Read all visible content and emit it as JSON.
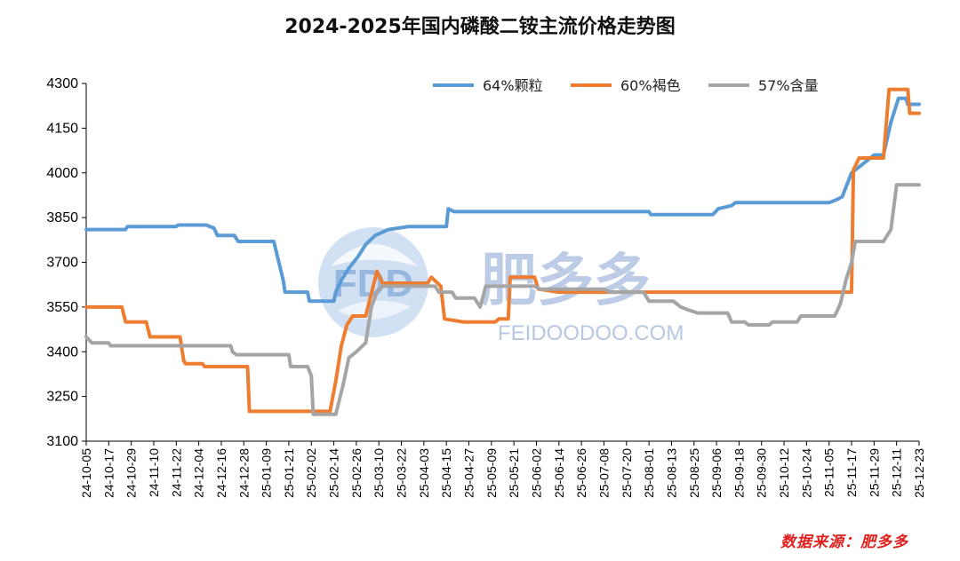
{
  "chart_data": {
    "type": "line",
    "title": "2024-2025年国内磷酸二铵主流价格走势图",
    "xlabel": "",
    "ylabel": "",
    "ylim": [
      3100,
      4300
    ],
    "yticks": [
      3100,
      3250,
      3400,
      3550,
      3700,
      3850,
      4000,
      4150,
      4300
    ],
    "xticks": [
      "24-10-05",
      "24-10-17",
      "24-10-29",
      "24-11-10",
      "24-11-22",
      "24-12-04",
      "24-12-16",
      "24-12-28",
      "25-01-09",
      "25-01-21",
      "25-02-02",
      "25-02-14",
      "25-02-26",
      "25-03-10",
      "25-03-22",
      "25-04-03",
      "25-04-15",
      "25-04-27",
      "25-05-09",
      "25-05-21",
      "25-06-02",
      "25-06-14",
      "25-06-26",
      "25-07-08",
      "25-07-20",
      "25-08-01",
      "25-08-13",
      "25-08-25",
      "25-09-06",
      "25-09-18",
      "25-09-30",
      "25-10-12",
      "25-10-24",
      "25-11-05",
      "25-11-17",
      "25-11-29",
      "25-12-11",
      "25-12-23"
    ],
    "grid": false,
    "legend_position": "top-right",
    "series": [
      {
        "name": "64%颗粒",
        "color": "#5b9bd5",
        "points": [
          [
            "24-10-05",
            3810
          ],
          [
            "24-10-26",
            3810
          ],
          [
            "24-10-27",
            3820
          ],
          [
            "24-11-22",
            3820
          ],
          [
            "24-11-23",
            3825
          ],
          [
            "24-12-08",
            3825
          ],
          [
            "24-12-12",
            3815
          ],
          [
            "24-12-14",
            3790
          ],
          [
            "24-12-23",
            3790
          ],
          [
            "24-12-25",
            3770
          ],
          [
            "25-01-13",
            3770
          ],
          [
            "25-01-18",
            3640
          ],
          [
            "25-01-19",
            3600
          ],
          [
            "25-01-31",
            3600
          ],
          [
            "25-02-01",
            3570
          ],
          [
            "25-02-14",
            3570
          ],
          [
            "25-02-15",
            3600
          ],
          [
            "25-02-18",
            3640
          ],
          [
            "25-02-22",
            3680
          ],
          [
            "25-02-27",
            3720
          ],
          [
            "25-03-03",
            3760
          ],
          [
            "25-03-08",
            3790
          ],
          [
            "25-03-15",
            3810
          ],
          [
            "25-03-26",
            3820
          ],
          [
            "25-04-15",
            3820
          ],
          [
            "25-04-16",
            3880
          ],
          [
            "25-04-19",
            3870
          ],
          [
            "25-08-01",
            3870
          ],
          [
            "25-08-02",
            3860
          ],
          [
            "25-09-04",
            3860
          ],
          [
            "25-09-07",
            3880
          ],
          [
            "25-09-14",
            3890
          ],
          [
            "25-09-16",
            3900
          ],
          [
            "25-11-05",
            3900
          ],
          [
            "25-11-09",
            3910
          ],
          [
            "25-11-12",
            3920
          ],
          [
            "25-11-17",
            4000
          ],
          [
            "25-11-29",
            4060
          ],
          [
            "25-12-04",
            4060
          ],
          [
            "25-12-08",
            4170
          ],
          [
            "25-12-12",
            4250
          ],
          [
            "25-12-16",
            4250
          ],
          [
            "25-12-17",
            4230
          ],
          [
            "25-12-23",
            4230
          ]
        ]
      },
      {
        "name": "60%褐色",
        "color": "#ed7d31",
        "points": [
          [
            "24-10-05",
            3550
          ],
          [
            "24-10-24",
            3550
          ],
          [
            "24-10-26",
            3500
          ],
          [
            "24-11-06",
            3500
          ],
          [
            "24-11-08",
            3450
          ],
          [
            "24-11-24",
            3450
          ],
          [
            "24-11-26",
            3370
          ],
          [
            "24-11-27",
            3360
          ],
          [
            "24-12-06",
            3360
          ],
          [
            "24-12-07",
            3350
          ],
          [
            "24-12-30",
            3350
          ],
          [
            "24-12-31",
            3200
          ],
          [
            "25-02-12",
            3200
          ],
          [
            "25-02-15",
            3300
          ],
          [
            "25-02-18",
            3420
          ],
          [
            "25-02-21",
            3490
          ],
          [
            "25-02-24",
            3520
          ],
          [
            "25-03-03",
            3520
          ],
          [
            "25-03-09",
            3670
          ],
          [
            "25-03-12",
            3630
          ],
          [
            "25-04-05",
            3630
          ],
          [
            "25-04-07",
            3650
          ],
          [
            "25-04-12",
            3620
          ],
          [
            "25-04-14",
            3510
          ],
          [
            "25-04-24",
            3500
          ],
          [
            "25-05-11",
            3500
          ],
          [
            "25-05-13",
            3510
          ],
          [
            "25-05-18",
            3510
          ],
          [
            "25-05-19",
            3650
          ],
          [
            "25-06-01",
            3650
          ],
          [
            "25-06-03",
            3610
          ],
          [
            "25-06-14",
            3600
          ],
          [
            "25-11-17",
            3600
          ],
          [
            "25-11-18",
            4010
          ],
          [
            "25-11-21",
            4050
          ],
          [
            "25-12-04",
            4050
          ],
          [
            "25-12-07",
            4280
          ],
          [
            "25-12-17",
            4280
          ],
          [
            "25-12-18",
            4200
          ],
          [
            "25-12-23",
            4200
          ]
        ]
      },
      {
        "name": "57%含量",
        "color": "#a5a5a5",
        "points": [
          [
            "24-10-05",
            3450
          ],
          [
            "24-10-08",
            3430
          ],
          [
            "24-10-17",
            3430
          ],
          [
            "24-10-18",
            3420
          ],
          [
            "24-12-21",
            3420
          ],
          [
            "24-12-22",
            3400
          ],
          [
            "24-12-24",
            3390
          ],
          [
            "25-01-21",
            3390
          ],
          [
            "25-01-22",
            3350
          ],
          [
            "25-01-31",
            3350
          ],
          [
            "25-02-02",
            3320
          ],
          [
            "25-02-03",
            3190
          ],
          [
            "25-02-15",
            3190
          ],
          [
            "25-02-19",
            3290
          ],
          [
            "25-02-22",
            3380
          ],
          [
            "25-02-26",
            3400
          ],
          [
            "25-03-03",
            3430
          ],
          [
            "25-03-06",
            3550
          ],
          [
            "25-03-09",
            3600
          ],
          [
            "25-03-12",
            3620
          ],
          [
            "25-04-09",
            3620
          ],
          [
            "25-04-11",
            3600
          ],
          [
            "25-04-18",
            3600
          ],
          [
            "25-04-20",
            3580
          ],
          [
            "25-04-30",
            3580
          ],
          [
            "25-05-03",
            3550
          ],
          [
            "25-05-06",
            3620
          ],
          [
            "25-06-01",
            3620
          ],
          [
            "25-06-04",
            3610
          ],
          [
            "25-07-08",
            3610
          ],
          [
            "25-07-11",
            3600
          ],
          [
            "25-07-29",
            3600
          ],
          [
            "25-08-01",
            3570
          ],
          [
            "25-08-14",
            3570
          ],
          [
            "25-08-18",
            3550
          ],
          [
            "25-08-22",
            3540
          ],
          [
            "25-08-27",
            3530
          ],
          [
            "25-09-12",
            3530
          ],
          [
            "25-09-14",
            3500
          ],
          [
            "25-09-21",
            3500
          ],
          [
            "25-09-23",
            3490
          ],
          [
            "25-10-04",
            3490
          ],
          [
            "25-10-06",
            3500
          ],
          [
            "25-10-19",
            3500
          ],
          [
            "25-10-21",
            3520
          ],
          [
            "25-11-08",
            3520
          ],
          [
            "25-11-11",
            3560
          ],
          [
            "25-11-14",
            3640
          ],
          [
            "25-11-17",
            3700
          ],
          [
            "25-11-19",
            3770
          ],
          [
            "25-12-04",
            3770
          ],
          [
            "25-12-08",
            3810
          ],
          [
            "25-12-11",
            3960
          ],
          [
            "25-12-23",
            3960
          ]
        ]
      }
    ]
  },
  "source_note": "数据来源：肥多多",
  "watermark": {
    "brand": "肥多多",
    "url": "FEIDOODOO.COM",
    "logo_text": "FDD"
  }
}
